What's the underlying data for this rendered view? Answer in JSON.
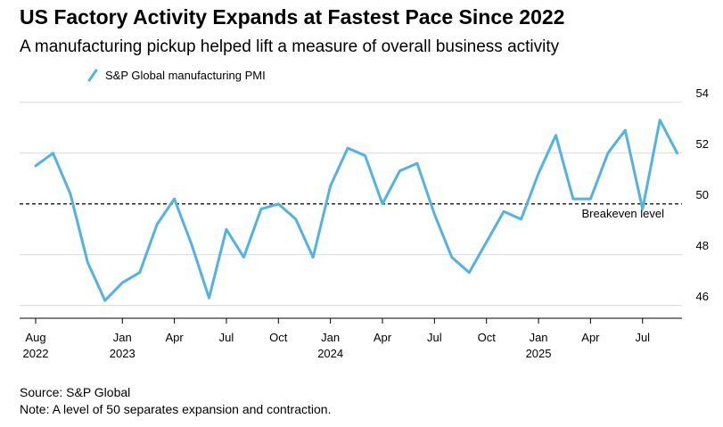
{
  "chart_data": {
    "type": "line",
    "title": "US Factory Activity Expands at Fastest Pace Since 2022",
    "subtitle": "A manufacturing pickup helped lift a measure of overall business activity",
    "series": [
      {
        "name": "S&P Global manufacturing PMI",
        "color": "#4fb3e8",
        "x": [
          "2022-08",
          "2022-09",
          "2022-10",
          "2022-11",
          "2022-12",
          "2023-01",
          "2023-02",
          "2023-03",
          "2023-04",
          "2023-05",
          "2023-06",
          "2023-07",
          "2023-08",
          "2023-09",
          "2023-10",
          "2023-11",
          "2023-12",
          "2024-01",
          "2024-02",
          "2024-03",
          "2024-04",
          "2024-05",
          "2024-06",
          "2024-07",
          "2024-08",
          "2024-09",
          "2024-10",
          "2024-11",
          "2024-12",
          "2025-01",
          "2025-02",
          "2025-03",
          "2025-04",
          "2025-05",
          "2025-06",
          "2025-07",
          "2025-08",
          "2025-09"
        ],
        "values": [
          51.5,
          52.0,
          50.4,
          47.7,
          46.2,
          46.9,
          47.3,
          49.2,
          50.2,
          48.4,
          46.3,
          49.0,
          47.9,
          49.8,
          50.0,
          49.4,
          47.9,
          50.7,
          52.2,
          51.9,
          50.0,
          51.3,
          51.6,
          49.6,
          47.9,
          47.3,
          48.5,
          49.7,
          49.4,
          51.2,
          52.7,
          50.2,
          50.2,
          52.0,
          52.9,
          49.8,
          53.3,
          52.0
        ]
      }
    ],
    "reference_line": {
      "value": 50,
      "label": "Breakeven level"
    },
    "yticks": [
      46,
      48,
      50,
      52,
      54
    ],
    "ylim": [
      45.5,
      54.8
    ],
    "xticks": [
      {
        "x": "2022-08",
        "month": "Aug",
        "year": "2022"
      },
      {
        "x": "2023-01",
        "month": "Jan",
        "year": "2023"
      },
      {
        "x": "2023-04",
        "month": "Apr",
        "year": ""
      },
      {
        "x": "2023-07",
        "month": "Jul",
        "year": ""
      },
      {
        "x": "2023-10",
        "month": "Oct",
        "year": ""
      },
      {
        "x": "2024-01",
        "month": "Jan",
        "year": "2024"
      },
      {
        "x": "2024-04",
        "month": "Apr",
        "year": ""
      },
      {
        "x": "2024-07",
        "month": "Jul",
        "year": ""
      },
      {
        "x": "2024-10",
        "month": "Oct",
        "year": ""
      },
      {
        "x": "2025-01",
        "month": "Jan",
        "year": "2025"
      },
      {
        "x": "2025-04",
        "month": "Apr",
        "year": ""
      },
      {
        "x": "2025-07",
        "month": "Jul",
        "year": ""
      }
    ],
    "grid": true,
    "yaxis_side": "right",
    "legend_position": "top-left"
  },
  "footer": {
    "source": "Source: S&P Global",
    "note": "Note: A level of 50 separates expansion and contraction."
  }
}
